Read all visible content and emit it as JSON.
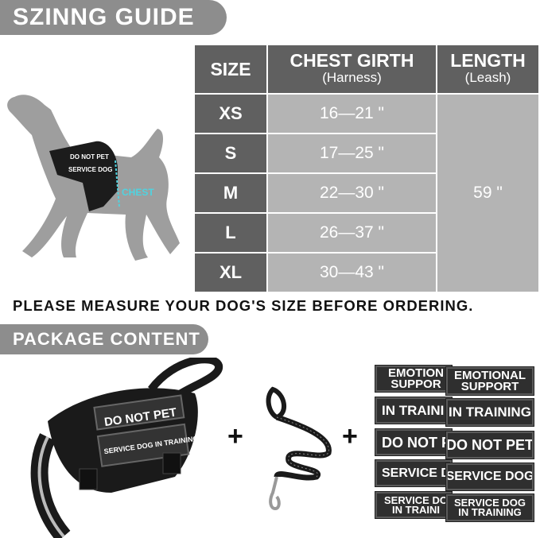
{
  "sizing_title": "SZINNG GUIDE",
  "chest_label": "CHEST",
  "harness_patch_top": "DO NOT PET",
  "harness_patch_bottom": "SERVICE DOG",
  "table": {
    "headers": [
      {
        "title": "SIZE",
        "sub": ""
      },
      {
        "title": "CHEST GIRTH",
        "sub": "(Harness)"
      },
      {
        "title": "LENGTH",
        "sub": "(Leash)"
      }
    ],
    "rows": [
      {
        "size": "XS",
        "chest": "16—21 \""
      },
      {
        "size": "S",
        "chest": "17—25 \""
      },
      {
        "size": "M",
        "chest": "22—30 \""
      },
      {
        "size": "L",
        "chest": "26—37 \""
      },
      {
        "size": "XL",
        "chest": "30—43 \""
      }
    ],
    "length": "59 \""
  },
  "notice": "PLEASE MEASURE YOUR DOG'S SIZE BEFORE ORDERING.",
  "package_title": "PACKAGE CONTENT",
  "package_harness_patch_top": "DO NOT PET",
  "package_harness_patch_bottom": "SERVICE DOG IN TRAINING",
  "plus": "+",
  "patches": [
    "EMOTIONAL SUPPORT",
    "IN TRAINING",
    "DO NOT PET",
    "SERVICE DOG",
    "SERVICE DOG IN TRAINING"
  ],
  "patches_back": [
    "EMOTION SUPPOR",
    "IN TRAINI",
    "DO NOT P",
    "SERVICE D",
    "SERVICE DO IN TRAINI"
  ],
  "colors": {
    "banner": "#8d8d8d",
    "table_dark": "#606060",
    "table_light": "#b4b4b4",
    "chest_marker": "#4fd3e0"
  }
}
